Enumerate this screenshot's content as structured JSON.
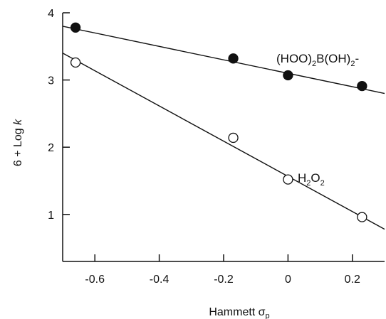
{
  "chart_data": {
    "type": "scatter",
    "xlabel": "Hammett σ",
    "xlabel_subscript": "p",
    "ylabel": "6 + Log k",
    "xlim": [
      -0.7,
      0.3
    ],
    "ylim": [
      0.3,
      4.0
    ],
    "x_ticks": [
      -0.6,
      -0.4,
      -0.2,
      0,
      0.2
    ],
    "x_tick_labels": [
      "-0.6",
      "-0.4",
      "-0.2",
      "0",
      "0.2"
    ],
    "y_ticks": [
      1,
      2,
      3,
      4
    ],
    "y_tick_labels": [
      "1",
      "2",
      "3",
      "4"
    ],
    "grid": false,
    "legend": "none",
    "series": [
      {
        "label_parts": [
          "(HOO)",
          "2",
          "B(OH)",
          "2",
          "-"
        ],
        "marker": "filled-circle",
        "color": "#111111",
        "x": [
          -0.66,
          -0.17,
          0.0,
          0.23
        ],
        "y": [
          3.78,
          3.32,
          3.07,
          2.91
        ],
        "fit_line": {
          "x": [
            -0.7,
            0.3
          ],
          "y": [
            3.8,
            2.8
          ]
        }
      },
      {
        "label_parts": [
          "H",
          "2",
          "O",
          "2"
        ],
        "marker": "open-circle",
        "color": "#111111",
        "x": [
          -0.66,
          -0.17,
          0.0,
          0.23
        ],
        "y": [
          3.26,
          2.14,
          1.52,
          0.96
        ],
        "fit_line": {
          "x": [
            -0.7,
            0.3
          ],
          "y": [
            3.4,
            0.78
          ]
        }
      }
    ]
  }
}
